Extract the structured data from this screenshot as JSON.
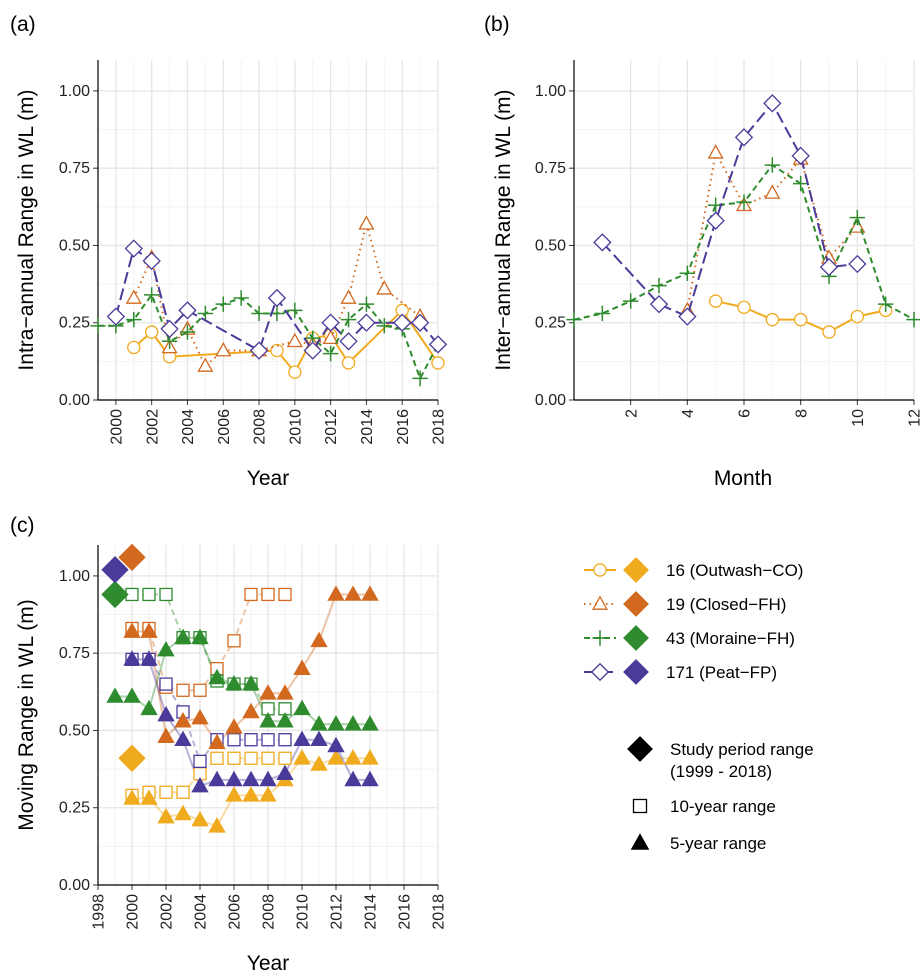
{
  "colors": {
    "16": "#F0AA1E",
    "19": "#D2691E",
    "43": "#2E8B2E",
    "171": "#4B3A9A",
    "grid": "#e6e6e6",
    "grid_minor": "#f3f3f3"
  },
  "panels": {
    "a": {
      "label": "(a)",
      "xlabel": "Year",
      "ylabel": "Intra−annual Range in WL (m)"
    },
    "b": {
      "label": "(b)",
      "xlabel": "Month",
      "ylabel": "Inter−annual Range in WL (m)"
    },
    "c": {
      "label": "(c)",
      "xlabel": "Year",
      "ylabel": "Moving Range in WL (m)"
    }
  },
  "legend": {
    "wells": [
      {
        "key": "16",
        "label": "16 (Outwash−CO)"
      },
      {
        "key": "19",
        "label": "19 (Closed−FH)"
      },
      {
        "key": "43",
        "label": "43 (Moraine−FH)"
      },
      {
        "key": "171",
        "label": "171 (Peat−FP)"
      }
    ],
    "ranges": [
      {
        "shape": "diamond",
        "label1": "Study period range",
        "label2": "(1999 - 2018)"
      },
      {
        "shape": "square",
        "label1": "10-year range",
        "label2": ""
      },
      {
        "shape": "triangle",
        "label1": "5-year range",
        "label2": ""
      }
    ]
  },
  "chart_data": [
    {
      "panel": "a",
      "type": "line",
      "xlabel": "Year",
      "ylabel": "Intra−annual Range in WL (m)",
      "xlim": [
        1999,
        2018
      ],
      "ylim": [
        0,
        1.1
      ],
      "xticks": [
        2000,
        2002,
        2004,
        2006,
        2008,
        2010,
        2012,
        2014,
        2016,
        2018
      ],
      "yticks": [
        0.0,
        0.25,
        0.5,
        0.75,
        1.0
      ],
      "ytick_labels": [
        "0.00",
        "0.25",
        "0.50",
        "0.75",
        "1.00"
      ],
      "series": [
        {
          "name": "16 (Outwash−CO)",
          "key": "16",
          "marker": "circle",
          "dash": "solid",
          "x": [
            2001,
            2002,
            2003,
            2009,
            2010,
            2011,
            2012,
            2013,
            2016,
            2018
          ],
          "y": [
            0.17,
            0.22,
            0.14,
            0.16,
            0.09,
            0.2,
            0.21,
            0.12,
            0.29,
            0.12
          ]
        },
        {
          "name": "19 (Closed−FH)",
          "key": "19",
          "marker": "triangle",
          "dash": "dotted",
          "x": [
            2001,
            2002,
            2003,
            2004,
            2005,
            2006,
            2008,
            2010,
            2011,
            2012,
            2013,
            2014,
            2015,
            2017
          ],
          "y": [
            0.33,
            0.46,
            0.17,
            0.23,
            0.11,
            0.16,
            0.16,
            0.19,
            0.18,
            0.2,
            0.33,
            0.57,
            0.36,
            0.27
          ]
        },
        {
          "name": "43 (Moraine−FH)",
          "key": "43",
          "marker": "plus",
          "dash": "dashed",
          "x": [
            1999,
            2000,
            2001,
            2002,
            2003,
            2004,
            2005,
            2006,
            2007,
            2008,
            2009,
            2010,
            2011,
            2012,
            2013,
            2014,
            2015,
            2016,
            2017,
            2018
          ],
          "y": [
            0.24,
            0.24,
            0.26,
            0.34,
            0.19,
            0.22,
            0.28,
            0.31,
            0.33,
            0.28,
            0.28,
            0.29,
            0.2,
            0.15,
            0.26,
            0.31,
            0.24,
            0.23,
            0.07,
            0.18
          ]
        },
        {
          "name": "171 (Peat−FP)",
          "key": "171",
          "marker": "diamond",
          "dash": "longdash",
          "x": [
            2000,
            2001,
            2002,
            2003,
            2004,
            2008,
            2009,
            2011,
            2012,
            2013,
            2014,
            2016,
            2017,
            2018
          ],
          "y": [
            0.27,
            0.49,
            0.45,
            0.23,
            0.29,
            0.16,
            0.33,
            0.16,
            0.25,
            0.19,
            0.25,
            0.25,
            0.25,
            0.18
          ]
        }
      ]
    },
    {
      "panel": "b",
      "type": "line",
      "xlabel": "Month",
      "ylabel": "Inter−annual Range in WL (m)",
      "xlim": [
        0,
        12
      ],
      "ylim": [
        0,
        1.1
      ],
      "xticks": [
        2,
        4,
        6,
        8,
        10,
        12
      ],
      "yticks": [
        0.0,
        0.25,
        0.5,
        0.75,
        1.0
      ],
      "ytick_labels": [
        "0.00",
        "0.25",
        "0.50",
        "0.75",
        "1.00"
      ],
      "series": [
        {
          "name": "16 (Outwash−CO)",
          "key": "16",
          "marker": "circle",
          "dash": "solid",
          "x": [
            5,
            6,
            7,
            8,
            9,
            10,
            11
          ],
          "y": [
            0.32,
            0.3,
            0.26,
            0.26,
            0.22,
            0.27,
            0.29
          ]
        },
        {
          "name": "19 (Closed−FH)",
          "key": "19",
          "marker": "triangle",
          "dash": "dotted",
          "x": [
            4,
            5,
            6,
            7,
            8,
            9,
            10
          ],
          "y": [
            0.29,
            0.8,
            0.63,
            0.67,
            0.78,
            0.46,
            0.56
          ]
        },
        {
          "name": "43 (Moraine−FH)",
          "key": "43",
          "marker": "plus",
          "dash": "dashed",
          "x": [
            0,
            1,
            2,
            3,
            4,
            5,
            6,
            7,
            8,
            9,
            10,
            11,
            12
          ],
          "y": [
            0.26,
            0.28,
            0.32,
            0.37,
            0.41,
            0.63,
            0.64,
            0.76,
            0.7,
            0.4,
            0.59,
            0.31,
            0.26
          ]
        },
        {
          "name": "171 (Peat−FP)",
          "key": "171",
          "marker": "diamond",
          "dash": "longdash",
          "x": [
            1,
            3,
            4,
            5,
            6,
            7,
            8,
            9,
            10
          ],
          "y": [
            0.51,
            0.31,
            0.27,
            0.58,
            0.85,
            0.96,
            0.79,
            0.43,
            0.44
          ]
        }
      ]
    },
    {
      "panel": "c",
      "type": "scatter",
      "xlabel": "Year",
      "ylabel": "Moving Range in WL (m)",
      "xlim": [
        1998,
        2018
      ],
      "ylim": [
        0,
        1.1
      ],
      "xticks": [
        1998,
        2000,
        2002,
        2004,
        2006,
        2008,
        2010,
        2012,
        2014,
        2016,
        2018
      ],
      "yticks": [
        0.0,
        0.25,
        0.5,
        0.75,
        1.0
      ],
      "ytick_labels": [
        "0.00",
        "0.25",
        "0.50",
        "0.75",
        "1.00"
      ],
      "study_period": [
        {
          "key": "16",
          "x": 2000,
          "y": 0.41
        },
        {
          "key": "19",
          "x": 2000,
          "y": 1.06
        },
        {
          "key": "43",
          "x": 1999,
          "y": 0.94
        },
        {
          "key": "171",
          "x": 1999,
          "y": 1.02
        }
      ],
      "ten_year": [
        {
          "key": "16",
          "x": [
            2000,
            2001,
            2002,
            2003,
            2004,
            2005,
            2006,
            2007,
            2008,
            2009
          ],
          "y": [
            0.29,
            0.3,
            0.3,
            0.3,
            0.36,
            0.41,
            0.41,
            0.41,
            0.41,
            0.41
          ]
        },
        {
          "key": "19",
          "x": [
            2000,
            2001,
            2002,
            2003,
            2004,
            2005,
            2006,
            2007,
            2008,
            2009
          ],
          "y": [
            0.83,
            0.83,
            0.64,
            0.63,
            0.63,
            0.7,
            0.79,
            0.94,
            0.94,
            0.94
          ]
        },
        {
          "key": "43",
          "x": [
            2000,
            2001,
            2002,
            2003,
            2004,
            2005,
            2006,
            2007,
            2008,
            2009
          ],
          "y": [
            0.94,
            0.94,
            0.94,
            0.8,
            0.8,
            0.66,
            0.65,
            0.65,
            0.57,
            0.57
          ]
        },
        {
          "key": "171",
          "x": [
            2000,
            2001,
            2002,
            2003,
            2004,
            2005,
            2006,
            2007,
            2008,
            2009
          ],
          "y": [
            0.73,
            0.73,
            0.65,
            0.56,
            0.4,
            0.47,
            0.47,
            0.47,
            0.47,
            0.47
          ]
        }
      ],
      "five_year": [
        {
          "key": "16",
          "x": [
            2000,
            2001,
            2002,
            2003,
            2004,
            2005,
            2006,
            2007,
            2008,
            2009,
            2010,
            2011,
            2012,
            2013,
            2014
          ],
          "y": [
            0.28,
            0.28,
            0.22,
            0.23,
            0.21,
            0.19,
            0.29,
            0.29,
            0.29,
            0.34,
            0.41,
            0.39,
            0.41,
            0.41,
            0.41
          ]
        },
        {
          "key": "19",
          "x": [
            2000,
            2001,
            2002,
            2003,
            2004,
            2005,
            2006,
            2007,
            2008,
            2009,
            2010,
            2011,
            2012,
            2013,
            2014
          ],
          "y": [
            0.82,
            0.82,
            0.48,
            0.53,
            0.54,
            0.46,
            0.51,
            0.56,
            0.62,
            0.62,
            0.7,
            0.79,
            0.94,
            0.94,
            0.94
          ]
        },
        {
          "key": "43",
          "x": [
            1999,
            2000,
            2001,
            2002,
            2003,
            2004,
            2005,
            2006,
            2007,
            2008,
            2009,
            2010,
            2011,
            2012,
            2013,
            2014
          ],
          "y": [
            0.61,
            0.61,
            0.57,
            0.76,
            0.8,
            0.8,
            0.67,
            0.65,
            0.65,
            0.53,
            0.53,
            0.57,
            0.52,
            0.52,
            0.52,
            0.52
          ]
        },
        {
          "key": "171",
          "x": [
            2000,
            2001,
            2002,
            2003,
            2004,
            2005,
            2006,
            2007,
            2008,
            2009,
            2010,
            2011,
            2012,
            2013,
            2014
          ],
          "y": [
            0.73,
            0.73,
            0.55,
            0.47,
            0.32,
            0.34,
            0.34,
            0.34,
            0.34,
            0.36,
            0.47,
            0.47,
            0.45,
            0.34,
            0.34
          ]
        }
      ]
    }
  ]
}
